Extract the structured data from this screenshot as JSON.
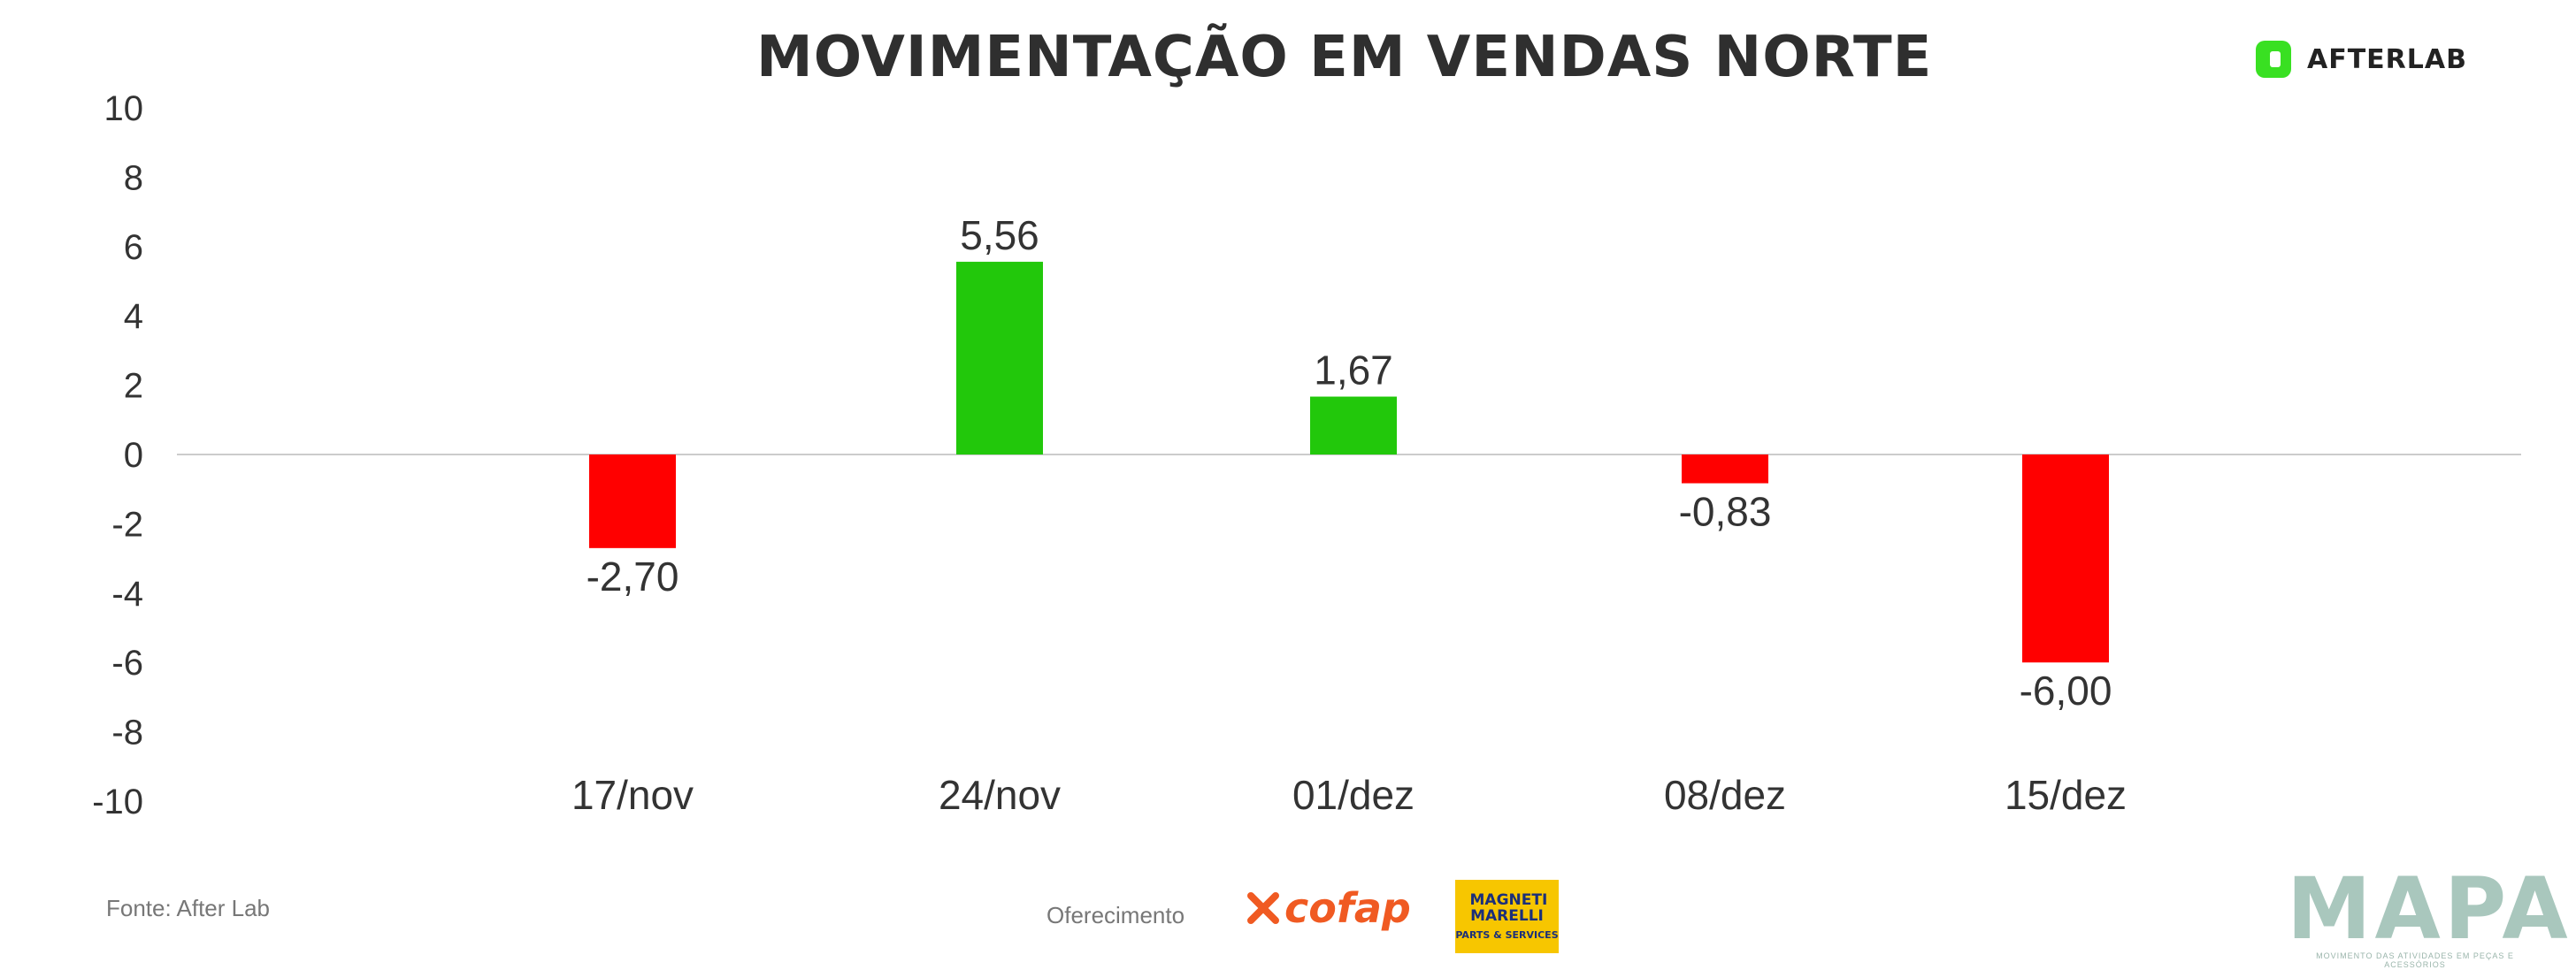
{
  "chart_data": {
    "type": "bar",
    "title": "MOVIMENTAÇÃO EM VENDAS NORTE",
    "categories": [
      "17/nov",
      "24/nov",
      "01/dez",
      "08/dez",
      "15/dez"
    ],
    "values": [
      -2.7,
      5.56,
      1.67,
      -0.83,
      -6.0
    ],
    "value_labels": [
      "-2,70",
      "5,56",
      "1,67",
      "-0,83",
      "-6,00"
    ],
    "yticks": [
      10,
      8,
      6,
      4,
      2,
      0,
      -2,
      -4,
      -6,
      -8,
      -10
    ],
    "ylim": [
      -10,
      10
    ],
    "xlabel": "",
    "ylabel": "",
    "grid": false,
    "positive_color": "#22c80b",
    "negative_color": "#ff0000",
    "zero_line_color": "#cccccc"
  },
  "brand": {
    "name": "AFTERLAB",
    "color": "#39e022"
  },
  "footer": {
    "source": "Fonte: After Lab",
    "sponsor_label": "Oferecimento",
    "sponsors": [
      {
        "name": "cofap",
        "color": "#f05a22"
      },
      {
        "name": "MAGNETI MARELLI",
        "subtitle": "PARTS & SERVICES",
        "color": "#f7c600"
      }
    ],
    "mapa": {
      "word": "MAPA",
      "subtitle": "MOVIMENTO DAS ATIVIDADES EM PEÇAS E ACESSÓRIOS"
    }
  }
}
